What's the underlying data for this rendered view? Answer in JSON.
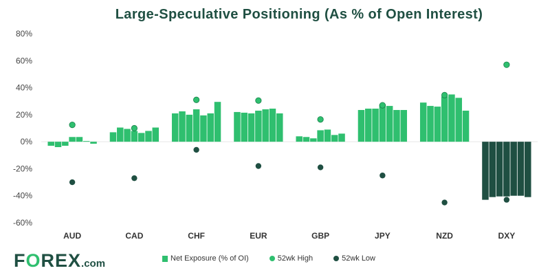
{
  "chart_data": {
    "type": "bar",
    "title": "Large-Speculative Positioning (As % of Open Interest)",
    "ylim": [
      -60,
      80
    ],
    "yticks": [
      "80%",
      "60%",
      "40%",
      "20%",
      "0%",
      "-20%",
      "-40%",
      "-60%"
    ],
    "ytick_values": [
      80,
      60,
      40,
      20,
      0,
      -20,
      -40,
      -60
    ],
    "categories": [
      "AUD",
      "CAD",
      "CHF",
      "EUR",
      "GBP",
      "JPY",
      "NZD",
      "DXY"
    ],
    "series": [
      {
        "name": "Net Exposure (% of OI)",
        "type": "bar",
        "color": "#2fbf6f",
        "values": [
          [
            -3,
            -4,
            -3,
            3.5,
            3.5,
            0.5,
            -1.5
          ],
          [
            7,
            10.5,
            9.5,
            8,
            6.5,
            8,
            10.5
          ],
          [
            21,
            22.5,
            20,
            24,
            19.5,
            21,
            29.5
          ],
          [
            22,
            21.5,
            21,
            23,
            24,
            24.5,
            21
          ],
          [
            4,
            3.5,
            2.5,
            8.5,
            9,
            5,
            6
          ],
          [
            23.5,
            24.5,
            24.5,
            27.5,
            26.5,
            23.5,
            23.5
          ],
          [
            29,
            26.5,
            26,
            33.5,
            35,
            32.5,
            23
          ],
          [
            -43,
            -41,
            -40.5,
            -40.5,
            -40,
            -40,
            -41
          ]
        ]
      },
      {
        "name": "52wk High",
        "type": "scatter",
        "color": "#2fbf6f",
        "values": [
          12.5,
          10,
          31,
          30.5,
          16.5,
          27,
          34.5,
          57
        ]
      },
      {
        "name": "52wk Low",
        "type": "scatter",
        "color": "#1f4f42",
        "values": [
          -30,
          -27,
          -6,
          -18,
          -19,
          -25,
          -45,
          -43
        ]
      }
    ],
    "dxy_color": "#1f4f42",
    "legend": [
      "Net Exposure (% of OI)",
      "52wk High",
      "52wk Low"
    ],
    "legend_position": "bottom"
  },
  "brand": {
    "logo_f": "F",
    "logo_o": "O",
    "logo_rex": "REX",
    "logo_dotcom": ".com"
  }
}
